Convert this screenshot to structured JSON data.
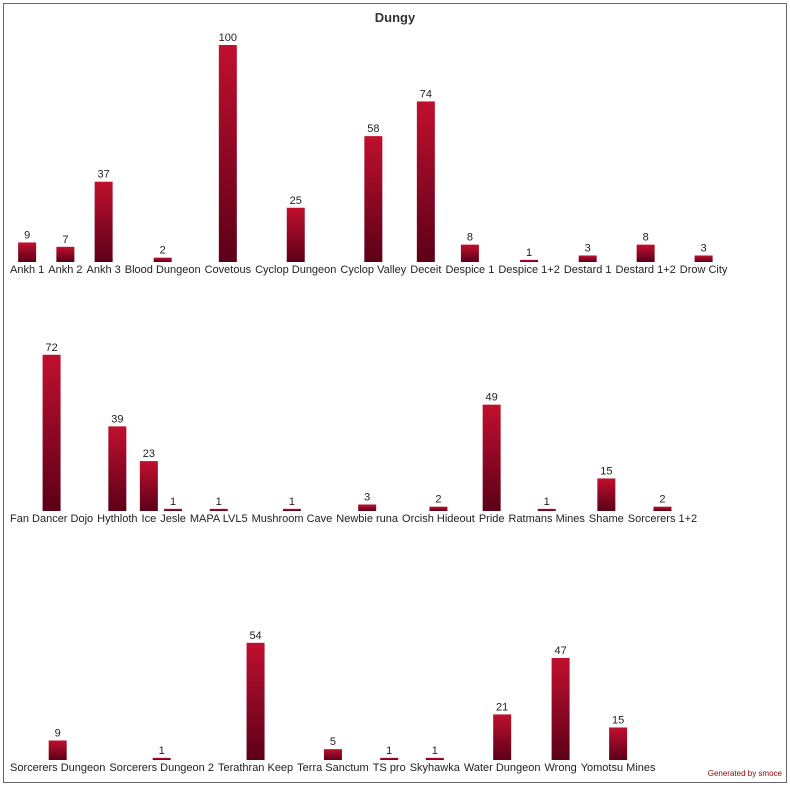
{
  "title": "Dungy",
  "footer": "Generated by smoce",
  "chart_data": [
    {
      "type": "bar",
      "color": "#c0102e",
      "categories": [
        "Ankh 1",
        "Ankh 2",
        "Ankh 3",
        "Blood Dungeon",
        "Covetous",
        "Cyclop Dungeon",
        "Cyclop Valley",
        "Deceit",
        "Despice 1",
        "Despice 1+2",
        "Destard 1",
        "Destard 1+2",
        "Drow City"
      ],
      "values": [
        9,
        7,
        37,
        2,
        100,
        25,
        58,
        74,
        8,
        1,
        3,
        8,
        3
      ]
    },
    {
      "type": "bar",
      "color": "#c0102e",
      "categories": [
        "Fan Dancer Dojo",
        "Hythloth",
        "Ice",
        "Jesle",
        "MAPA LVL5",
        "Mushroom Cave",
        "Newbie runa",
        "Orcish Hideout",
        "Pride",
        "Ratmans Mines",
        "Shame",
        "Sorcerers 1+2"
      ],
      "values": [
        72,
        39,
        23,
        1,
        1,
        1,
        3,
        2,
        49,
        1,
        15,
        2
      ]
    },
    {
      "type": "bar",
      "color": "#c0102e",
      "categories": [
        "Sorcerers Dungeon",
        "Sorcerers Dungeon 2",
        "Terathran Keep",
        "Terra Sanctum",
        "TS pro",
        "Skyhawka",
        "Water Dungeon",
        "Wrong",
        "Yomotsu Mines"
      ],
      "values": [
        9,
        1,
        54,
        5,
        1,
        1,
        21,
        47,
        15
      ]
    }
  ]
}
